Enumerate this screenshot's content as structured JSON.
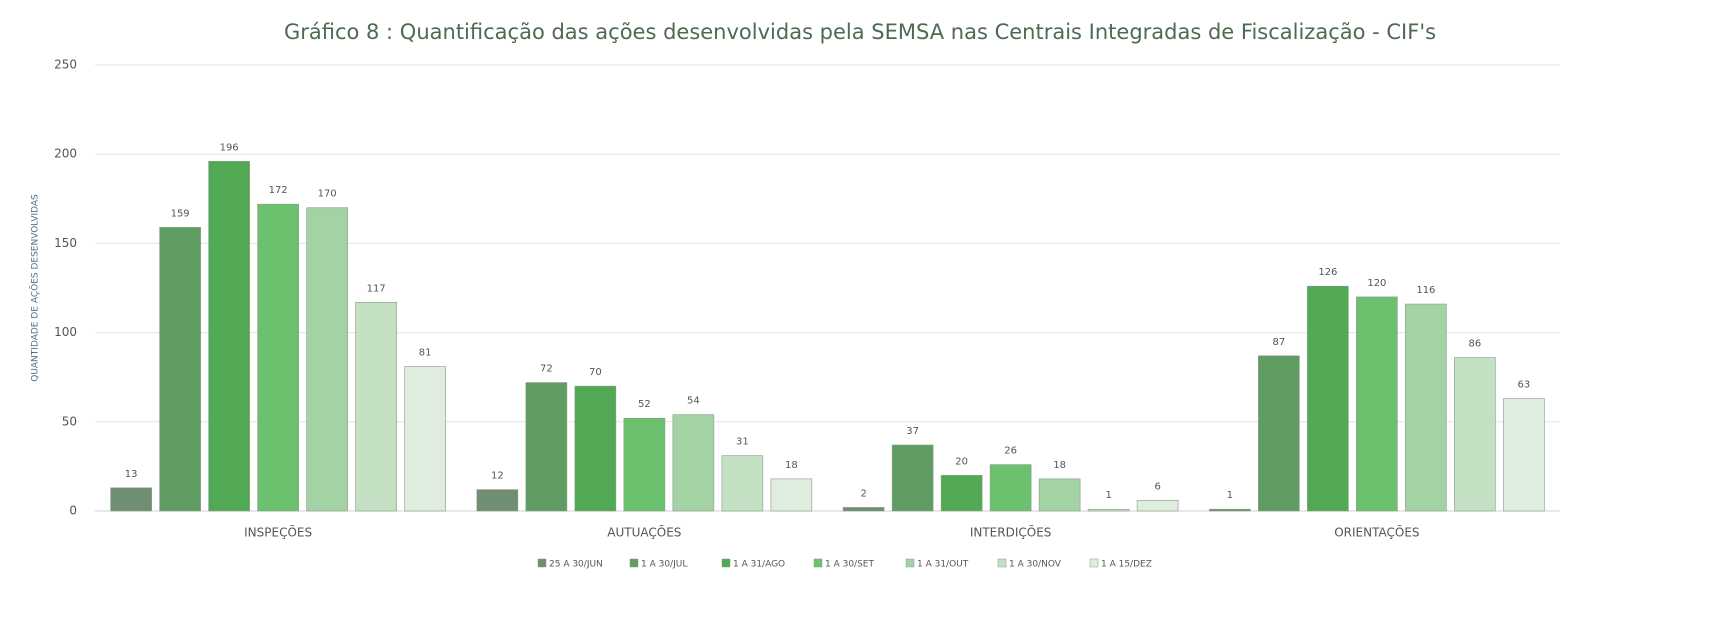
{
  "chart_data": {
    "type": "bar",
    "title": "Gráfico 8 : Quantificação das ações desenvolvidas pela SEMSA nas Centrais Integradas de Fiscalização - CIF's",
    "y_label": "QUANTIDADE DE AÇÕES DESENVOLVIDAS",
    "categories": [
      "INSPEÇÕES",
      "AUTUAÇÕES",
      "INTERDIÇÕES",
      "ORIENTAÇÕES"
    ],
    "series": [
      {
        "name": "25 A 30/JUN",
        "color": "#6f8f70",
        "values": [
          13,
          12,
          2,
          1
        ]
      },
      {
        "name": "1 A 30/JUL",
        "color": "#5f9d62",
        "values": [
          159,
          72,
          37,
          87
        ]
      },
      {
        "name": "1 A 31/AGO",
        "color": "#52a955",
        "values": [
          196,
          70,
          20,
          126
        ]
      },
      {
        "name": "1 A 30/SET",
        "color": "#6cc16e",
        "values": [
          172,
          52,
          26,
          120
        ]
      },
      {
        "name": "1 A 31/OUT",
        "color": "#a3d2a4",
        "values": [
          170,
          54,
          18,
          116
        ]
      },
      {
        "name": "1 A 30/NOV",
        "color": "#c3e0c3",
        "values": [
          117,
          31,
          1,
          86
        ]
      },
      {
        "name": "1 A 15/DEZ",
        "color": "#dfeddf",
        "values": [
          81,
          18,
          6,
          63
        ]
      }
    ],
    "ylim": [
      0,
      250
    ],
    "yticks": [
      0,
      50,
      100,
      150,
      200,
      250
    ],
    "grid": true,
    "legend": "bottom"
  }
}
